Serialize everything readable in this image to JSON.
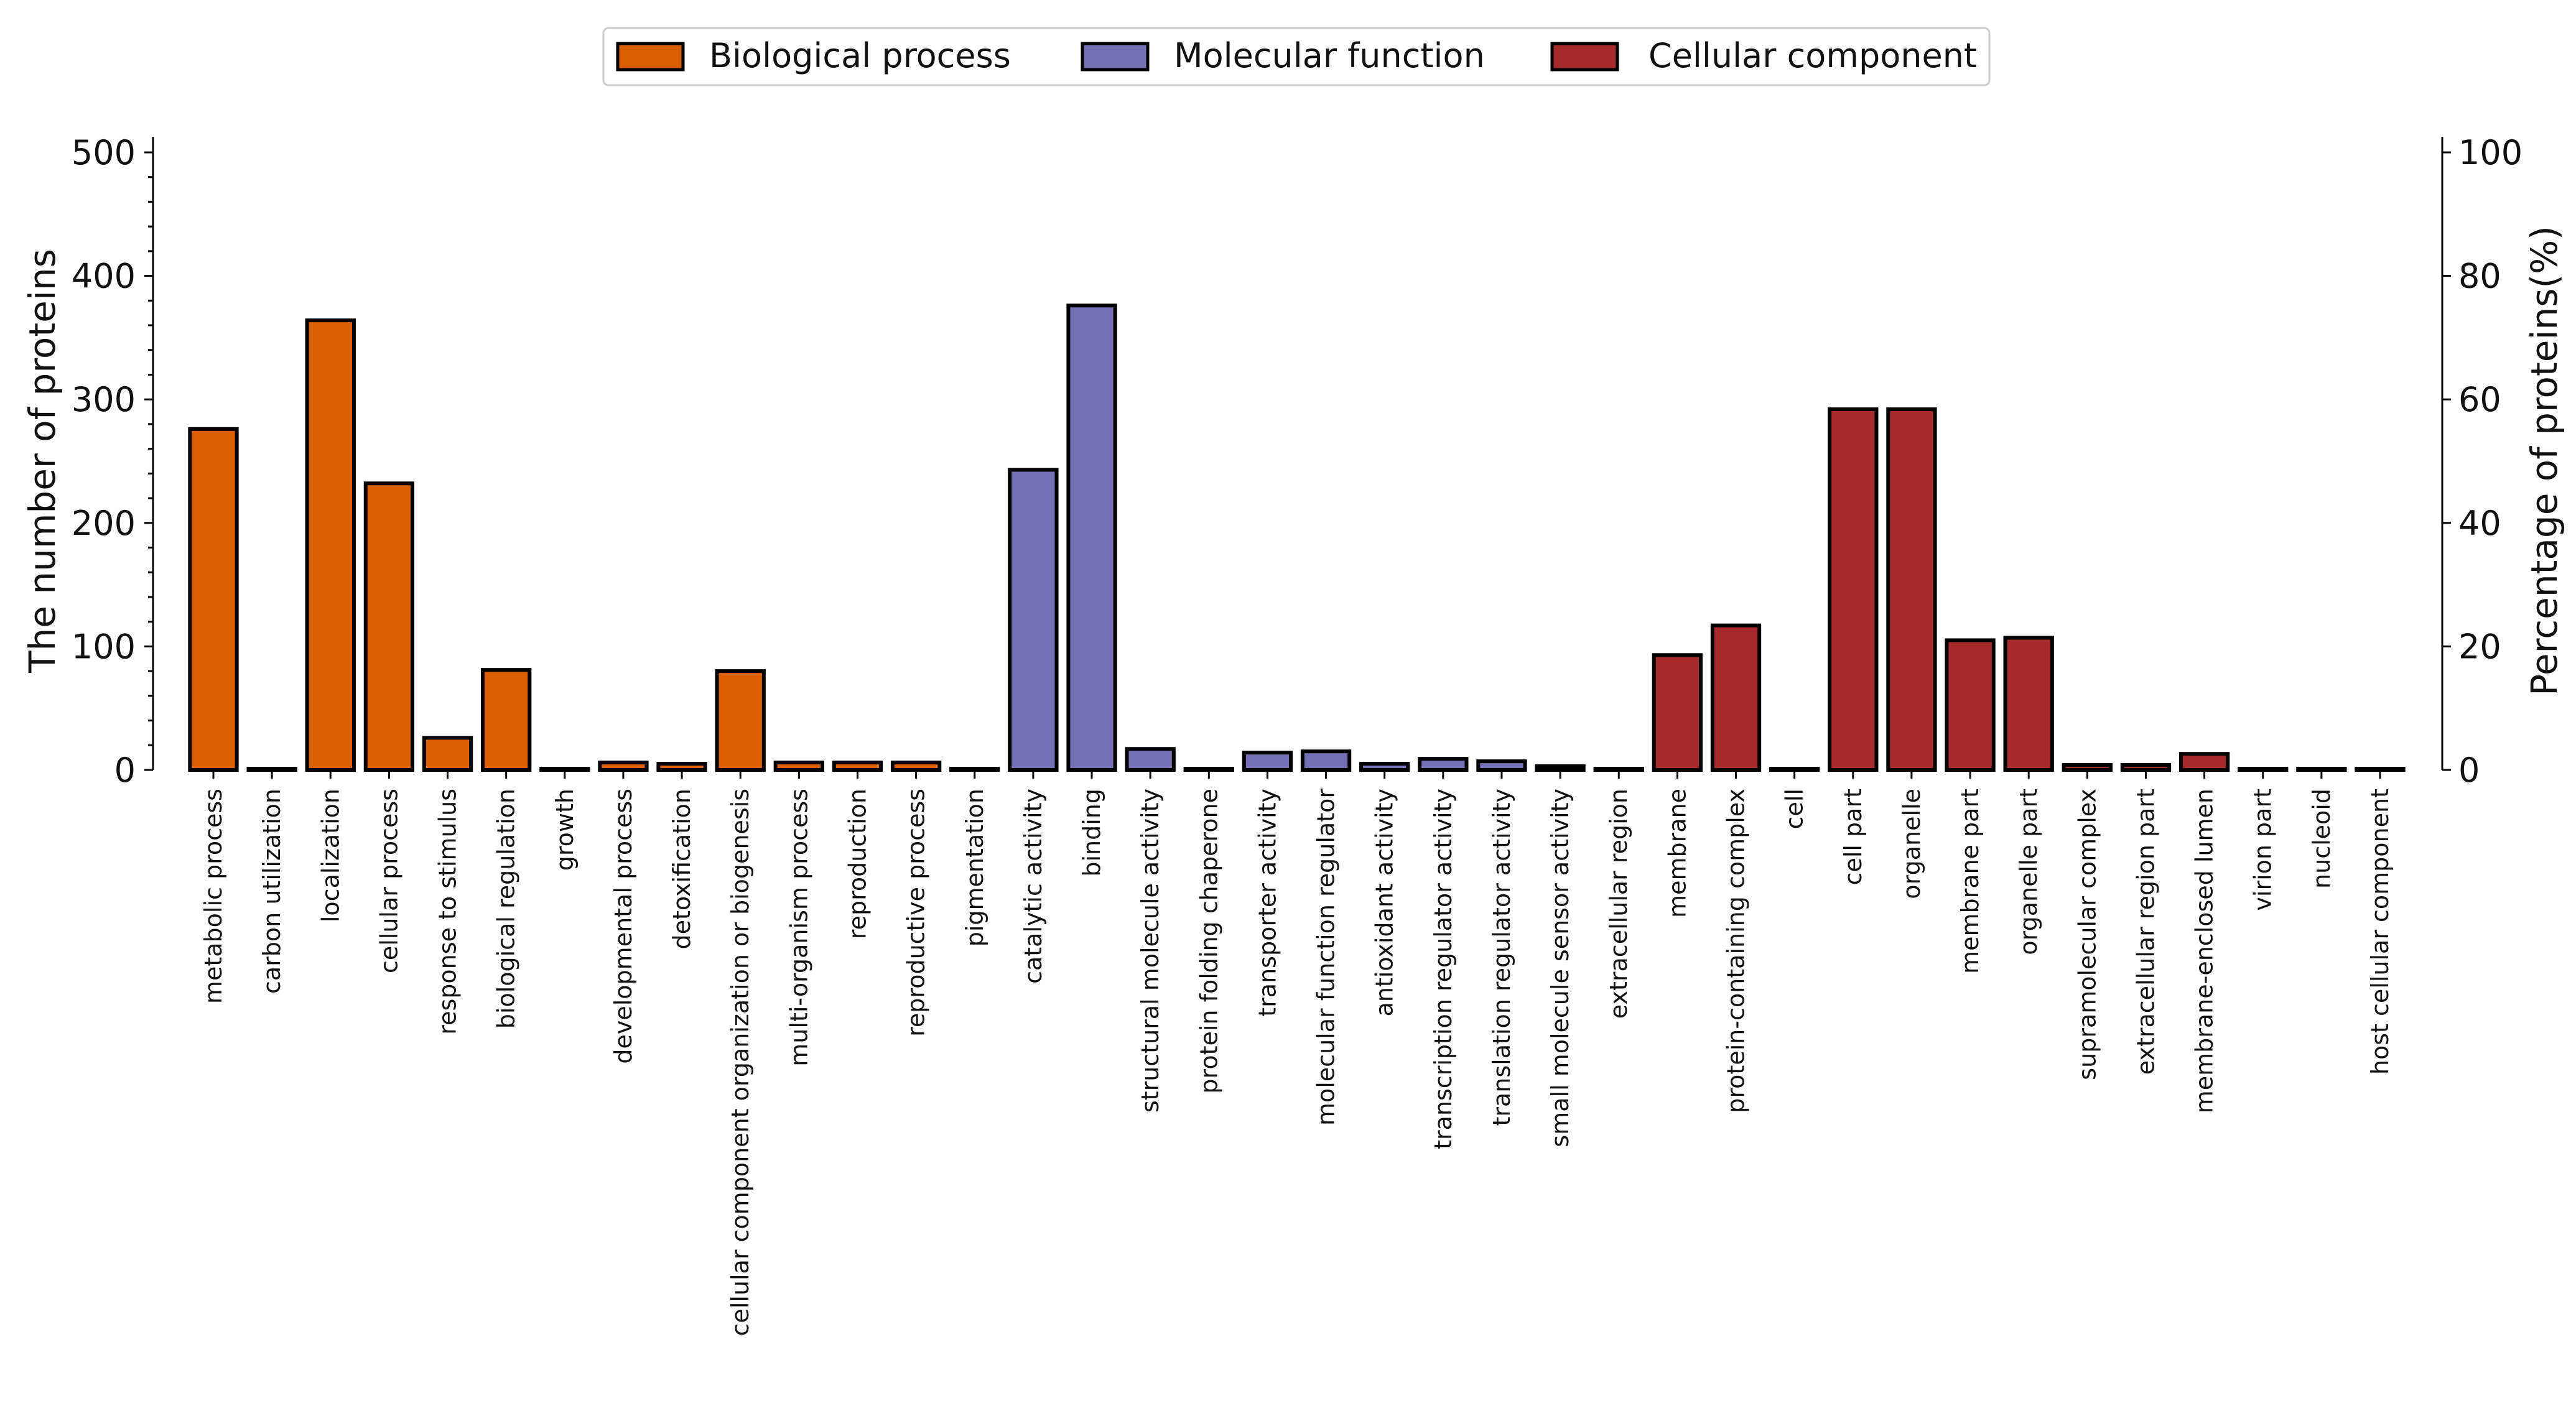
{
  "chart_data": {
    "type": "bar",
    "title": "",
    "ylabel": "The number of proteins",
    "ylabel_right": "Percentage of proteins(%)",
    "ylim": [
      0,
      500
    ],
    "ylim_right": [
      0,
      100
    ],
    "yticks": [
      0,
      100,
      200,
      300,
      400,
      500
    ],
    "yticks_right": [
      0,
      20,
      40,
      60,
      80,
      100
    ],
    "grid": false,
    "legend_position": "top-center",
    "legend": [
      {
        "label": "Biological process",
        "color": "#D95F02"
      },
      {
        "label": "Molecular function",
        "color": "#7570B3"
      },
      {
        "label": "Cellular component",
        "color": "#A6292B"
      }
    ],
    "categories": [
      "metabolic process",
      "carbon utilization",
      "localization",
      "cellular process",
      "response to stimulus",
      "biological regulation",
      "growth",
      "developmental process",
      "detoxification",
      "cellular component organization or biogenesis",
      "multi-organism process",
      "reproduction",
      "reproductive process",
      "pigmentation",
      "catalytic activity",
      "binding",
      "structural molecule activity",
      "protein folding chaperone",
      "transporter activity",
      "molecular function regulator",
      "antioxidant activity",
      "transcription regulator activity",
      "translation regulator activity",
      "small molecule sensor activity",
      "extracellular region",
      "membrane",
      "protein-containing complex",
      "cell",
      "cell part",
      "organelle",
      "membrane part",
      "organelle part",
      "supramolecular complex",
      "extracellular region part",
      "membrane-enclosed lumen",
      "virion part",
      "nucleoid",
      "host cellular component"
    ],
    "groups": [
      0,
      0,
      0,
      0,
      0,
      0,
      0,
      0,
      0,
      0,
      0,
      0,
      0,
      0,
      1,
      1,
      1,
      1,
      1,
      1,
      1,
      1,
      1,
      1,
      2,
      2,
      2,
      2,
      2,
      2,
      2,
      2,
      2,
      2,
      2,
      2,
      2,
      2
    ],
    "values": [
      276,
      1,
      364,
      232,
      26,
      81,
      1,
      6,
      5,
      80,
      6,
      6,
      6,
      1,
      243,
      376,
      17,
      1,
      14,
      15,
      5,
      9,
      7,
      3,
      1,
      93,
      117,
      1,
      292,
      292,
      105,
      107,
      4,
      4,
      13,
      1,
      1,
      1
    ]
  }
}
